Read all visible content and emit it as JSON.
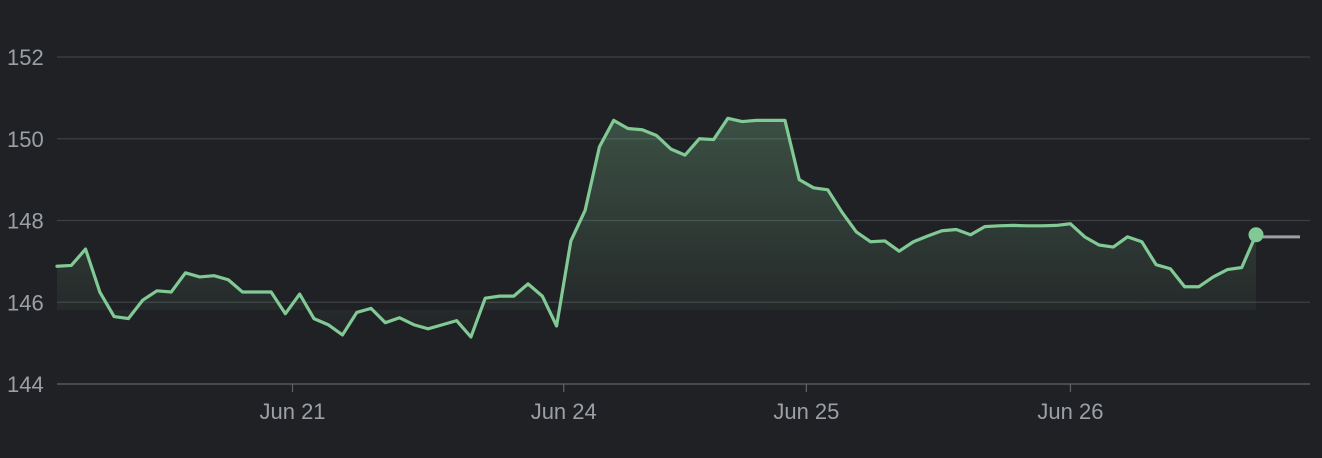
{
  "chart_data": {
    "type": "area",
    "title": "",
    "xlabel": "",
    "ylabel": "",
    "ylim": [
      144,
      152
    ],
    "yticks": [
      144,
      146,
      148,
      150,
      152
    ],
    "xticks": [
      {
        "label": "Jun 21",
        "index": 16.5
      },
      {
        "label": "Jun 24",
        "index": 35.5
      },
      {
        "label": "Jun 25",
        "index": 52.5
      },
      {
        "label": "Jun 26",
        "index": 71
      }
    ],
    "grid": true,
    "colors": {
      "background": "#202124",
      "line": "#81c995",
      "grid": "#3c4043",
      "axis": "#5f6368",
      "tick_text": "#9aa0a6",
      "trailing_line": "#9aa0a6"
    },
    "series": [
      {
        "values": [
          146.88,
          146.9,
          147.3,
          146.25,
          145.65,
          145.6,
          146.05,
          146.28,
          146.25,
          146.72,
          146.62,
          146.65,
          146.55,
          146.25,
          146.25,
          146.25,
          145.72,
          146.2,
          145.6,
          145.45,
          145.2,
          145.75,
          145.85,
          145.5,
          145.62,
          145.45,
          145.35,
          145.45,
          145.55,
          145.15,
          146.1,
          146.15,
          146.15,
          146.45,
          146.15,
          145.42,
          147.5,
          148.25,
          149.8,
          150.45,
          150.25,
          150.22,
          150.08,
          149.75,
          149.6,
          150.0,
          149.98,
          150.5,
          150.42,
          150.45,
          150.45,
          150.45,
          149.0,
          148.8,
          148.75,
          148.2,
          147.72,
          147.48,
          147.5,
          147.25,
          147.48,
          147.62,
          147.75,
          147.78,
          147.65,
          147.85,
          147.87,
          147.88,
          147.87,
          147.87,
          147.88,
          147.92,
          147.6,
          147.4,
          147.35,
          147.6,
          147.48,
          146.92,
          146.82,
          146.38,
          146.38,
          146.62,
          146.8,
          146.85,
          147.65
        ]
      }
    ],
    "trailing_value": 147.6
  }
}
